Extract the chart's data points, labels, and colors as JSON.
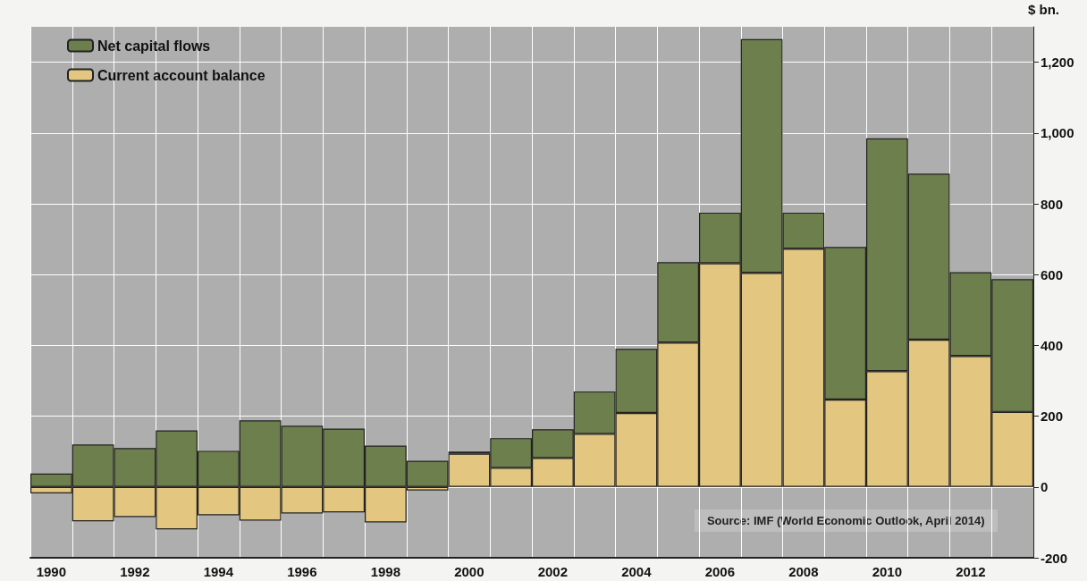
{
  "chart_data": {
    "type": "bar",
    "stacked": true,
    "categories": [
      "1990",
      null,
      "1992",
      null,
      "1994",
      null,
      "1996",
      null,
      "1998",
      null,
      "2000",
      null,
      "2002",
      null,
      "2004",
      null,
      "2006",
      null,
      "2008",
      null,
      "2010",
      null,
      "2012",
      null
    ],
    "series": [
      {
        "name": "Current account balance",
        "color": "#e3c67f",
        "values": [
          -18,
          -97,
          -85,
          -120,
          -80,
          -95,
          -75,
          -72,
          -100,
          -10,
          94,
          54,
          82,
          150,
          209,
          408,
          632,
          605,
          673,
          247,
          327,
          416,
          370,
          212
        ]
      },
      {
        "name": "Net capital flows",
        "color": "#6e7f4e",
        "values": [
          38,
          120,
          110,
          160,
          102,
          188,
          173,
          165,
          117,
          74,
          6,
          84,
          81,
          120,
          181,
          227,
          143,
          660,
          102,
          431,
          658,
          469,
          237,
          375
        ]
      }
    ],
    "ylabel": "$ bn.",
    "ylim": [
      -200,
      1300
    ],
    "yticks": [
      -200,
      {
        "value": 0,
        "label": "0"
      },
      200,
      400,
      600,
      800,
      {
        "value": 1000,
        "label": "1,000"
      },
      {
        "value": 1200,
        "label": "1,200"
      }
    ],
    "grid": true,
    "legend": "top left",
    "annotations": [
      "Source: IMF (World Economic Outlook, April 2014)"
    ]
  }
}
